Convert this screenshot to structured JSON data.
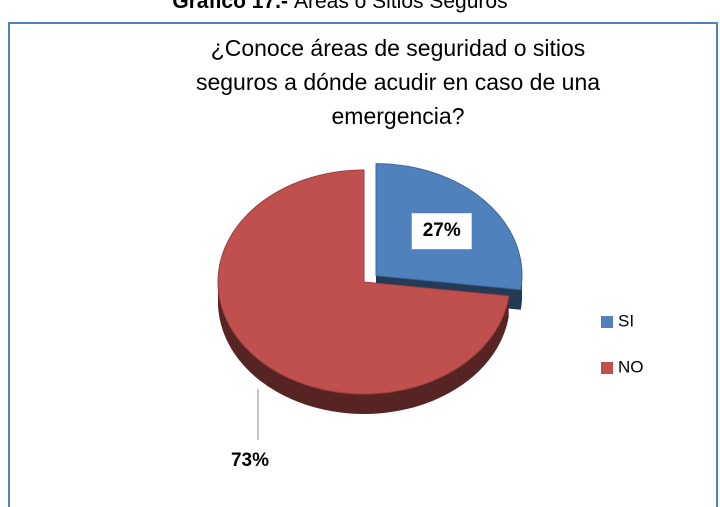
{
  "figure_label": "Gráfico 17.-",
  "figure_title": "Áreas o Sitios Seguros",
  "chart_data": {
    "type": "pie",
    "title": [
      "¿Conoce áreas de seguridad o sitios",
      "seguros a dónde acudir en caso de una",
      "emergencia?"
    ],
    "categories": [
      "SI",
      "NO"
    ],
    "values": [
      27,
      73
    ],
    "value_labels": [
      "27%",
      "73%"
    ],
    "colors": [
      "#4f81bd",
      "#c0504d"
    ],
    "explode": [
      true,
      false
    ],
    "legend": "right"
  }
}
